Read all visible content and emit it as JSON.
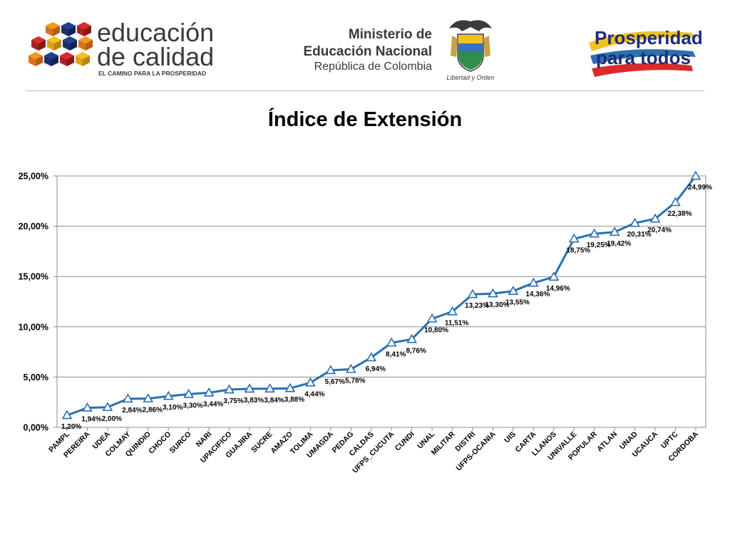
{
  "header": {
    "left_logo": {
      "line1": "educación",
      "line2": "de calidad",
      "tagline": "EL CAMINO PARA LA PROSPERIDAD"
    },
    "ministry": {
      "line1": "Ministerio de",
      "line2": "Educación Nacional",
      "line3": "República de Colombia",
      "seal_motto": "Libertad y Orden",
      "seal_icon": "coat-of-arms-icon"
    },
    "right_logo": {
      "line1": "Prosperidad",
      "line2": "para todos"
    }
  },
  "colors": {
    "line": "#2a6fb0",
    "brand_dark": "#3a3a3a",
    "prosperidad_blue": "#1d2d7a"
  },
  "chart_data": {
    "type": "line",
    "title": "Índice de Extensión",
    "xlabel": "",
    "ylabel": "",
    "ylim": [
      0,
      25
    ],
    "yticks": [
      "0,00%",
      "5,00%",
      "10,00%",
      "15,00%",
      "20,00%",
      "25,00%"
    ],
    "grid": true,
    "marker": "triangle",
    "categories": [
      "PAMPL",
      "PEREIRA",
      "UDEA",
      "COLMAY",
      "QUINDIO",
      "CHOCO",
      "SURCO",
      "NARI",
      "UPACIFICO",
      "GUAJIRA",
      "SUCRE",
      "AMAZO",
      "TOLIMA",
      "UMAGDA",
      "PEDAG",
      "CALDAS",
      "UFPS_CUCUTA",
      "CUNDI",
      "UNAL",
      "MILITAR",
      "DISTRI",
      "UFPS-OCANIA",
      "UIS",
      "CARTA",
      "LLANOS",
      "UNIVALLE",
      "POPULAR",
      "ATLAN",
      "UNAD",
      "UCAUCA",
      "UPTC",
      "CORDOBA"
    ],
    "values": [
      1.2,
      1.94,
      2.0,
      2.84,
      2.86,
      3.1,
      3.3,
      3.44,
      3.75,
      3.83,
      3.84,
      3.88,
      4.44,
      5.67,
      5.78,
      6.94,
      8.41,
      8.76,
      10.8,
      11.51,
      13.23,
      13.3,
      13.55,
      14.36,
      14.96,
      18.75,
      19.25,
      19.42,
      20.31,
      20.74,
      22.38,
      24.99
    ],
    "data_labels": [
      "1,20%",
      "1,94%",
      "2,00%",
      "2,84%",
      "2,86%",
      "3,10%",
      "3,30%",
      "3,44%",
      "3,75%",
      "3,83%",
      "3,84%",
      "3,88%",
      "4,44%",
      "5,67%",
      "5,78%",
      "6,94%",
      "8,41%",
      "8,76%",
      "10,80%",
      "11,51%",
      "13,23%",
      "13,30%",
      "13,55%",
      "14,36%",
      "14,96%",
      "18,75%",
      "19,25%",
      "19,42%",
      "20,31%",
      "20,74%",
      "22,38%",
      "24,99%"
    ]
  }
}
